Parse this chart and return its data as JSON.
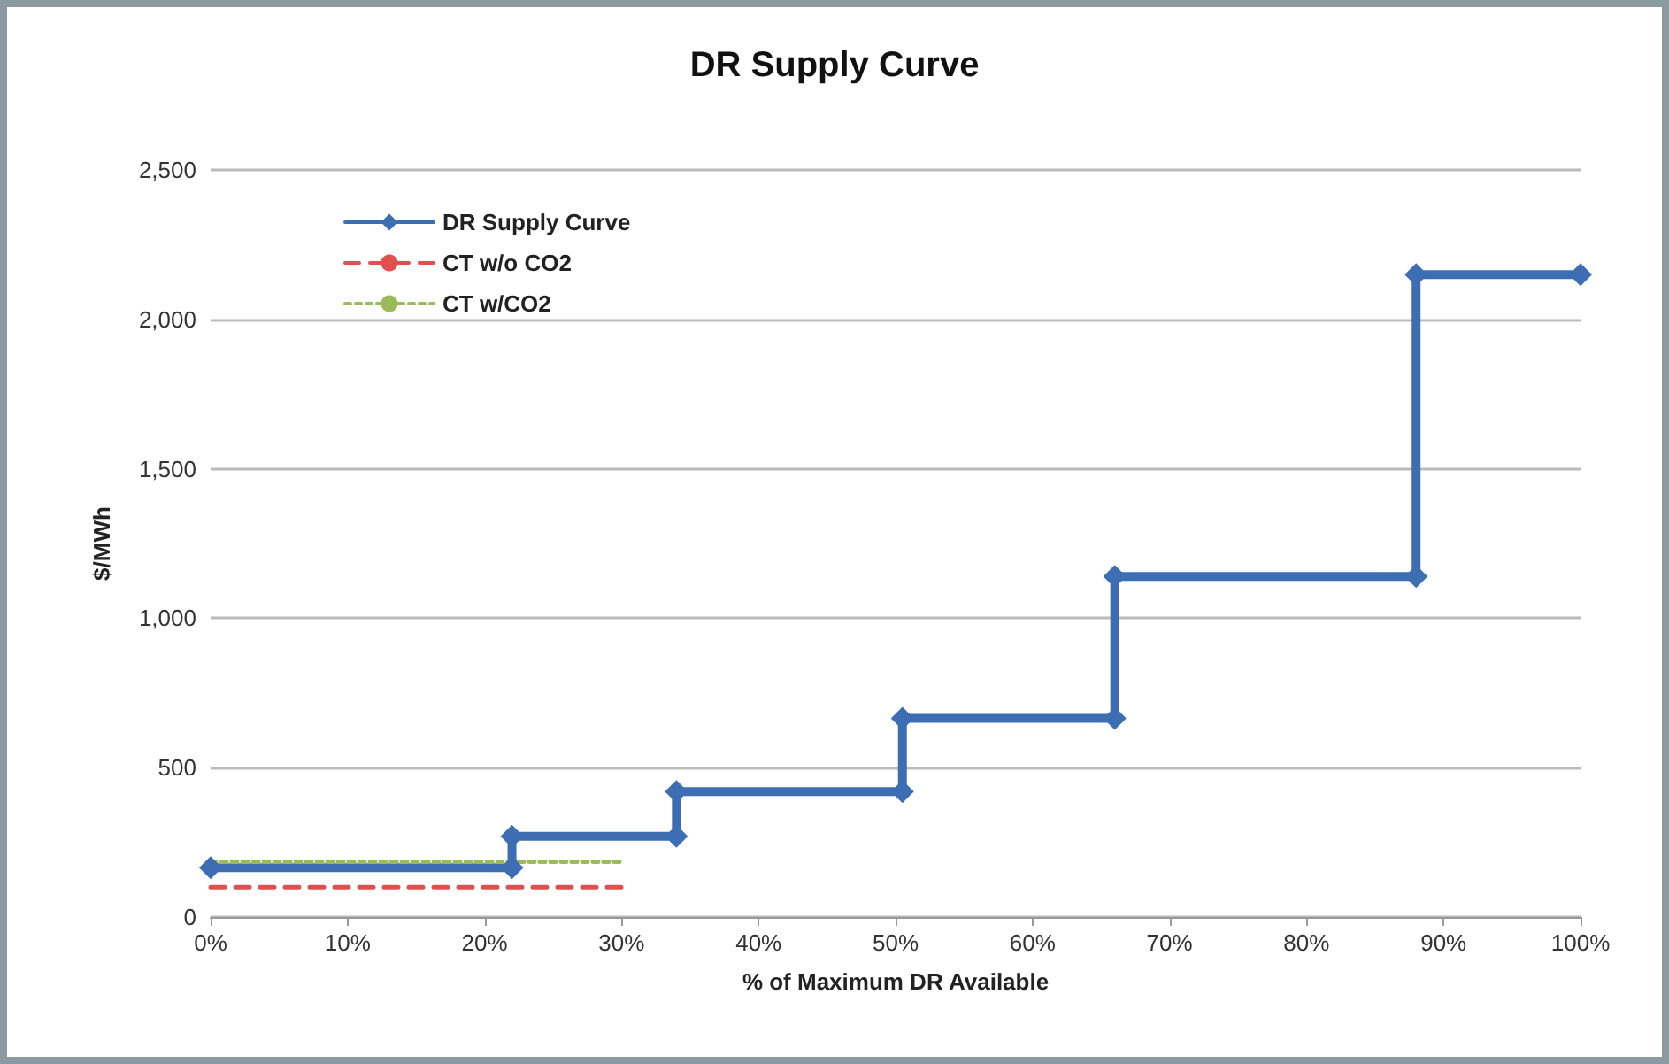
{
  "chart_data": {
    "type": "line",
    "title": "DR Supply Curve",
    "xlabel": "% of Maximum DR Available",
    "ylabel": "$/MWh",
    "series": [
      {
        "name": "DR Supply Curve",
        "color": "#3d6eb4",
        "marker": "diamond",
        "line_style": "solid",
        "x": [
          0,
          22,
          22,
          34,
          34,
          50.5,
          50.5,
          66,
          66,
          88,
          88,
          100
        ],
        "values": [
          165,
          165,
          270,
          270,
          420,
          420,
          665,
          665,
          1140,
          1140,
          2150,
          2150
        ]
      },
      {
        "name": "CT w/o CO2",
        "color": "#e0504d",
        "marker": "none",
        "line_style": "dashed",
        "x": [
          0,
          30
        ],
        "values": [
          100,
          100
        ]
      },
      {
        "name": "CT w/CO2",
        "color": "#9bbb59",
        "marker": "none",
        "line_style": "dotted",
        "x": [
          0,
          30
        ],
        "values": [
          185,
          185
        ]
      }
    ],
    "xlim": [
      0,
      100
    ],
    "xticks": [
      {
        "value": 0,
        "label": "0%"
      },
      {
        "value": 10,
        "label": "10%"
      },
      {
        "value": 20,
        "label": "20%"
      },
      {
        "value": 30,
        "label": "30%"
      },
      {
        "value": 40,
        "label": "40%"
      },
      {
        "value": 50,
        "label": "50%"
      },
      {
        "value": 60,
        "label": "60%"
      },
      {
        "value": 70,
        "label": "70%"
      },
      {
        "value": 80,
        "label": "80%"
      },
      {
        "value": 90,
        "label": "90%"
      },
      {
        "value": 100,
        "label": "100%"
      }
    ],
    "ylim": [
      0,
      2500
    ],
    "yticks": [
      0,
      500,
      {
        "value": 1000,
        "label": "1,000"
      },
      {
        "value": 1500,
        "label": "1,500"
      },
      {
        "value": 2000,
        "label": "2,000"
      },
      {
        "value": 2500,
        "label": "2,500"
      }
    ],
    "grid": "y",
    "legend": "top left"
  }
}
